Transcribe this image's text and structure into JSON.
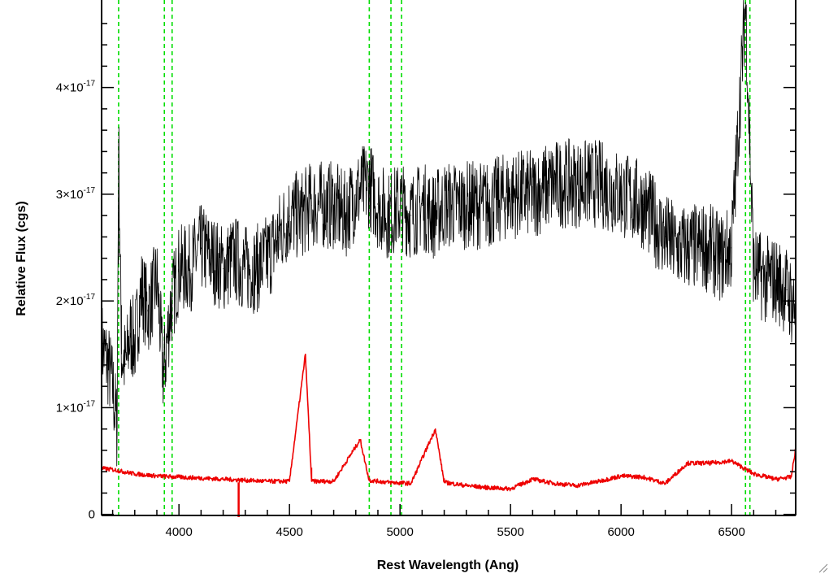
{
  "chart_data": {
    "type": "line",
    "title": "",
    "xlabel": "Rest Wavelength (Ang)",
    "ylabel": "Relative Flux (cgs)",
    "xlim": [
      3650,
      6790
    ],
    "ylim": [
      -1e-19,
      4.82e-17
    ],
    "grid": false,
    "x_ticks": [
      {
        "value": 4000,
        "label": "4000"
      },
      {
        "value": 4500,
        "label": "4500"
      },
      {
        "value": 5000,
        "label": "5000"
      },
      {
        "value": 5500,
        "label": "5500"
      },
      {
        "value": 6000,
        "label": "6000"
      },
      {
        "value": 6500,
        "label": "6500"
      }
    ],
    "y_ticks": [
      {
        "value": 0,
        "label": "0",
        "mant": "",
        "exp": ""
      },
      {
        "value": 1e-17,
        "label": "1×10^-17",
        "mant": "1×10",
        "exp": "-17"
      },
      {
        "value": 2e-17,
        "label": "2×10^-17",
        "mant": "2×10",
        "exp": "-17"
      },
      {
        "value": 3e-17,
        "label": "3×10^-17",
        "mant": "3×10",
        "exp": "-17"
      },
      {
        "value": 4e-17,
        "label": "4×10^-17",
        "mant": "4×10",
        "exp": "-17"
      }
    ],
    "vlines": [
      3727,
      3934,
      3969,
      4861,
      4959,
      5007,
      6563,
      6583
    ],
    "vline_color": "#00dd00",
    "series": [
      {
        "role": "spectrum",
        "color": "#000000",
        "points": [
          [
            3650,
            1.6e-17
          ],
          [
            3680,
            1.4e-17
          ],
          [
            3700,
            1.2e-17
          ],
          [
            3720,
            8e-18
          ],
          [
            3727,
            3.5e-17
          ],
          [
            3740,
            1.5e-17
          ],
          [
            3760,
            1.4e-17
          ],
          [
            3780,
            1.7e-17
          ],
          [
            3800,
            1.6e-17
          ],
          [
            3830,
            2.1e-17
          ],
          [
            3860,
            1.9e-17
          ],
          [
            3900,
            2.2e-17
          ],
          [
            3930,
            1.3e-17
          ],
          [
            3960,
            1.9e-17
          ],
          [
            4000,
            2.3e-17
          ],
          [
            4050,
            2.3e-17
          ],
          [
            4100,
            2.5e-17
          ],
          [
            4150,
            2.4e-17
          ],
          [
            4200,
            2.3e-17
          ],
          [
            4250,
            2.4e-17
          ],
          [
            4300,
            2.3e-17
          ],
          [
            4350,
            2.3e-17
          ],
          [
            4400,
            2.4e-17
          ],
          [
            4450,
            2.6e-17
          ],
          [
            4500,
            2.8e-17
          ],
          [
            4550,
            2.8e-17
          ],
          [
            4600,
            2.9e-17
          ],
          [
            4650,
            2.9e-17
          ],
          [
            4700,
            2.9e-17
          ],
          [
            4750,
            2.8e-17
          ],
          [
            4800,
            3e-17
          ],
          [
            4861,
            3.1e-17
          ],
          [
            4900,
            2.9e-17
          ],
          [
            4950,
            2.8e-17
          ],
          [
            5000,
            2.9e-17
          ],
          [
            5050,
            2.8e-17
          ],
          [
            5100,
            2.9e-17
          ],
          [
            5150,
            2.8e-17
          ],
          [
            5200,
            2.9e-17
          ],
          [
            5300,
            2.9e-17
          ],
          [
            5400,
            2.9e-17
          ],
          [
            5500,
            3e-17
          ],
          [
            5600,
            3e-17
          ],
          [
            5700,
            3.1e-17
          ],
          [
            5800,
            3.1e-17
          ],
          [
            5900,
            3.1e-17
          ],
          [
            6000,
            3e-17
          ],
          [
            6100,
            2.9e-17
          ],
          [
            6200,
            2.6e-17
          ],
          [
            6250,
            2.5e-17
          ],
          [
            6300,
            2.5e-17
          ],
          [
            6350,
            2.5e-17
          ],
          [
            6400,
            2.5e-17
          ],
          [
            6450,
            2.4e-17
          ],
          [
            6500,
            2.5e-17
          ],
          [
            6563,
            4.8e-17
          ],
          [
            6600,
            2.3e-17
          ],
          [
            6650,
            2.2e-17
          ],
          [
            6700,
            2.2e-17
          ],
          [
            6750,
            2.1e-17
          ],
          [
            6790,
            1.9e-17
          ]
        ]
      },
      {
        "role": "error",
        "color": "#ee0000",
        "points": [
          [
            3650,
            4.3e-18
          ],
          [
            3700,
            4.2e-18
          ],
          [
            3800,
            3.8e-18
          ],
          [
            3900,
            3.6e-18
          ],
          [
            4000,
            3.5e-18
          ],
          [
            4100,
            3.4e-18
          ],
          [
            4200,
            3.3e-18
          ],
          [
            4300,
            3.2e-18
          ],
          [
            4400,
            3.1e-18
          ],
          [
            4500,
            3.1e-18
          ],
          [
            4572,
            1.5e-17
          ],
          [
            4600,
            3.1e-18
          ],
          [
            4700,
            3.1e-18
          ],
          [
            4820,
            7e-18
          ],
          [
            4860,
            3.2e-18
          ],
          [
            4950,
            3e-18
          ],
          [
            5050,
            2.9e-18
          ],
          [
            5160,
            8e-18
          ],
          [
            5200,
            3e-18
          ],
          [
            5300,
            2.7e-18
          ],
          [
            5400,
            2.5e-18
          ],
          [
            5500,
            2.4e-18
          ],
          [
            5600,
            3.3e-18
          ],
          [
            5700,
            2.9e-18
          ],
          [
            5800,
            2.7e-18
          ],
          [
            5900,
            3.1e-18
          ],
          [
            6000,
            3.6e-18
          ],
          [
            6100,
            3.5e-18
          ],
          [
            6200,
            2.9e-18
          ],
          [
            6300,
            4.8e-18
          ],
          [
            6400,
            4.8e-18
          ],
          [
            6500,
            5e-18
          ],
          [
            6600,
            3.8e-18
          ],
          [
            6700,
            3.3e-18
          ],
          [
            6770,
            3.5e-18
          ],
          [
            6790,
            6.2e-18
          ]
        ]
      }
    ]
  }
}
